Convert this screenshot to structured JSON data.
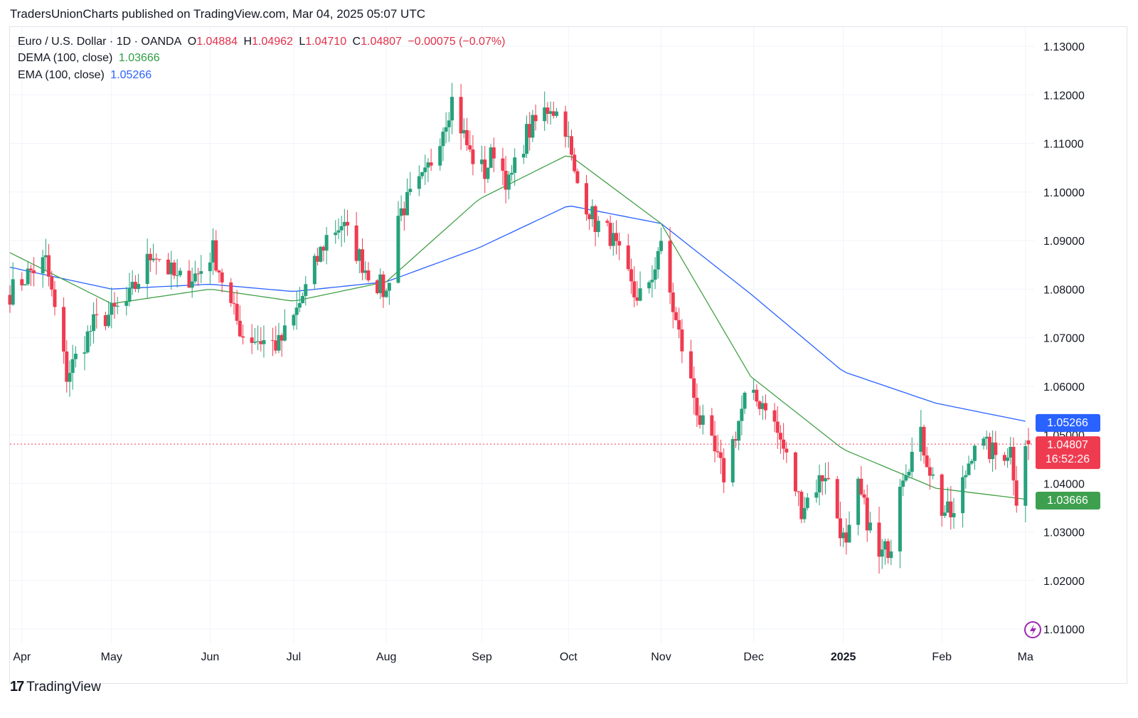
{
  "publisher_line": "TradersUnionCharts published on TradingView.com, Mar 04, 2025 05:07 UTC",
  "legend": {
    "symbol": "Euro / U.S. Dollar · 1D · OANDA",
    "o_label": "O",
    "o_value": "1.04884",
    "h_label": "H",
    "h_value": "1.04962",
    "l_label": "L",
    "l_value": "1.04710",
    "c_label": "C",
    "c_value": "1.04807",
    "change": "−0.00075 (−0.07%)",
    "dema_label": "DEMA (100, close)",
    "dema_value": "1.03666",
    "ema_label": "EMA (100, close)",
    "ema_value": "1.05266"
  },
  "footer": {
    "logo": "17",
    "brand": "TradingView"
  },
  "colors": {
    "up": "#26a17b",
    "down": "#ef3b50",
    "dema": "#43a047",
    "ema": "#2962ff",
    "grid": "#f0f3fa"
  },
  "chart_data": {
    "type": "candlestick",
    "title": "Euro / U.S. Dollar · 1D · OANDA",
    "ylim": [
      1.005,
      1.138
    ],
    "y_ticks": [
      "1.13000",
      "1.12000",
      "1.11000",
      "1.10000",
      "1.09000",
      "1.08000",
      "1.07000",
      "1.06000",
      "1.05000",
      "1.04000",
      "1.03000",
      "1.02000",
      "1.01000"
    ],
    "x_ticks": [
      "Apr",
      "May",
      "Jun",
      "Jul",
      "Aug",
      "Sep",
      "Oct",
      "Nov",
      "Dec",
      "2025",
      "Feb",
      "Ma"
    ],
    "last_price": "1.04807",
    "countdown": "16:52:26",
    "ema_badge": "1.05266",
    "dema_badge": "1.03666",
    "close_anchors": [
      [
        "2024-03-28",
        1.0793
      ],
      [
        "2024-04-04",
        1.0837
      ],
      [
        "2024-04-09",
        1.0857
      ],
      [
        "2024-04-16",
        1.0622
      ],
      [
        "2024-04-25",
        1.0727
      ],
      [
        "2024-05-06",
        1.077
      ],
      [
        "2024-05-15",
        1.088
      ],
      [
        "2024-05-23",
        1.0817
      ],
      [
        "2024-05-30",
        1.0831
      ],
      [
        "2024-06-04",
        1.088
      ],
      [
        "2024-06-10",
        1.0763
      ],
      [
        "2024-06-14",
        1.0705
      ],
      [
        "2024-06-26",
        1.0685
      ],
      [
        "2024-07-01",
        1.074
      ],
      [
        "2024-07-12",
        1.0907
      ],
      [
        "2024-07-17",
        1.0935
      ],
      [
        "2024-07-25",
        1.0843
      ],
      [
        "2024-08-01",
        1.079
      ],
      [
        "2024-08-05",
        1.0953
      ],
      [
        "2024-08-14",
        1.103
      ],
      [
        "2024-08-23",
        1.119
      ],
      [
        "2024-08-29",
        1.1078
      ],
      [
        "2024-09-03",
        1.104
      ],
      [
        "2024-09-06",
        1.1088
      ],
      [
        "2024-09-11",
        1.1015
      ],
      [
        "2024-09-17",
        1.112
      ],
      [
        "2024-09-25",
        1.118
      ],
      [
        "2024-09-30",
        1.1136
      ],
      [
        "2024-10-03",
        1.1032
      ],
      [
        "2024-10-10",
        1.0936
      ],
      [
        "2024-10-15",
        1.0912
      ],
      [
        "2024-10-23",
        1.0787
      ],
      [
        "2024-10-28",
        1.0795
      ],
      [
        "2024-10-31",
        1.0883
      ],
      [
        "2024-11-01",
        1.088
      ],
      [
        "2024-11-06",
        1.073
      ],
      [
        "2024-11-14",
        1.053
      ],
      [
        "2024-11-22",
        1.0417
      ],
      [
        "2024-11-29",
        1.0573
      ],
      [
        "2024-12-06",
        1.0567
      ],
      [
        "2024-12-12",
        1.0471
      ],
      [
        "2024-12-18",
        1.035
      ],
      [
        "2024-12-26",
        1.0424
      ],
      [
        "2025-01-02",
        1.0262
      ],
      [
        "2025-01-06",
        1.0389
      ],
      [
        "2025-01-13",
        1.0244
      ],
      [
        "2025-01-17",
        1.0278
      ],
      [
        "2025-01-20",
        1.0414
      ],
      [
        "2025-01-27",
        1.0494
      ],
      [
        "2025-02-03",
        1.0346
      ],
      [
        "2025-02-07",
        1.033
      ],
      [
        "2025-02-14",
        1.0491
      ],
      [
        "2025-02-21",
        1.0458
      ],
      [
        "2025-02-26",
        1.047
      ],
      [
        "2025-02-28",
        1.0375
      ],
      [
        "2025-03-03",
        1.0488
      ],
      [
        "2025-03-04",
        1.0481
      ]
    ],
    "ema_100": [
      [
        "2024-03-28",
        1.0845
      ],
      [
        "2024-05-01",
        1.08
      ],
      [
        "2024-06-03",
        1.081
      ],
      [
        "2024-07-01",
        1.0795
      ],
      [
        "2024-08-01",
        1.0815
      ],
      [
        "2024-09-01",
        1.0885
      ],
      [
        "2024-10-01",
        1.0972
      ],
      [
        "2024-11-01",
        1.0935
      ],
      [
        "2024-12-01",
        1.079
      ],
      [
        "2025-01-01",
        1.063
      ],
      [
        "2025-02-01",
        1.0565
      ],
      [
        "2025-03-04",
        1.05266
      ]
    ],
    "dema_100": [
      [
        "2024-03-28",
        1.0875
      ],
      [
        "2024-05-01",
        1.077
      ],
      [
        "2024-06-03",
        1.08
      ],
      [
        "2024-07-01",
        1.0775
      ],
      [
        "2024-08-01",
        1.0815
      ],
      [
        "2024-09-01",
        1.0985
      ],
      [
        "2024-10-01",
        1.1077
      ],
      [
        "2024-11-01",
        1.0935
      ],
      [
        "2024-12-01",
        1.062
      ],
      [
        "2025-01-01",
        1.047
      ],
      [
        "2025-02-01",
        1.039
      ],
      [
        "2025-03-04",
        1.03666
      ]
    ]
  }
}
